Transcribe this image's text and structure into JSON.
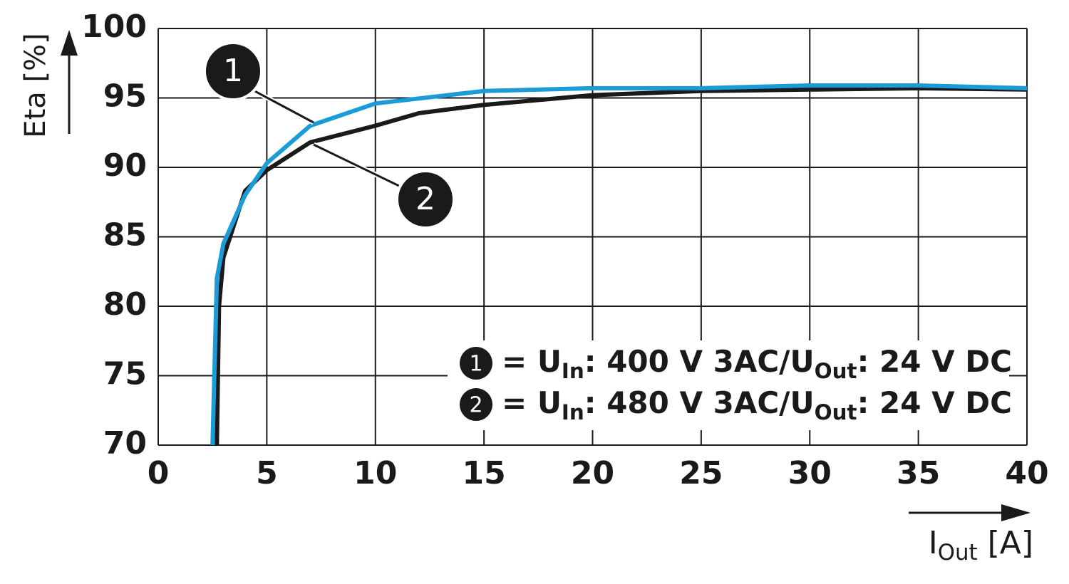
{
  "chart_data": {
    "type": "line",
    "ylabel": "Eta [%]",
    "xlabel": [
      "I",
      "Out",
      " [A]"
    ],
    "xlim": [
      0,
      40
    ],
    "xticks": [
      0,
      5,
      10,
      15,
      20,
      25,
      30,
      35,
      40
    ],
    "ylim": [
      70,
      100
    ],
    "yticks": [
      70,
      75,
      80,
      85,
      90,
      95,
      100
    ],
    "grid": true,
    "series": [
      {
        "marker": "1",
        "name": [
          "= U",
          "In",
          ": 400 V 3AC/U",
          "Out",
          ": 24 V DC"
        ],
        "color": "#1b9bd7",
        "x": [
          2.5,
          2.7,
          3,
          4,
          5,
          7,
          10,
          15,
          20,
          25,
          30,
          35,
          40
        ],
        "values": [
          70,
          82,
          84.5,
          88,
          90.3,
          93,
          94.6,
          95.5,
          95.7,
          95.7,
          95.9,
          95.9,
          95.7
        ]
      },
      {
        "marker": "2",
        "name": [
          "= U",
          "In",
          ": 480 V 3AC/U",
          "Out",
          ": 24 V DC"
        ],
        "color": "#1a1a1a",
        "x": [
          2.7,
          2.8,
          3,
          4,
          5,
          7,
          10,
          12,
          15,
          20,
          25,
          30,
          35,
          40
        ],
        "values": [
          70,
          80,
          83.5,
          88.3,
          89.8,
          91.8,
          93,
          93.9,
          94.5,
          95.2,
          95.5,
          95.6,
          95.7,
          95.6
        ]
      }
    ]
  }
}
